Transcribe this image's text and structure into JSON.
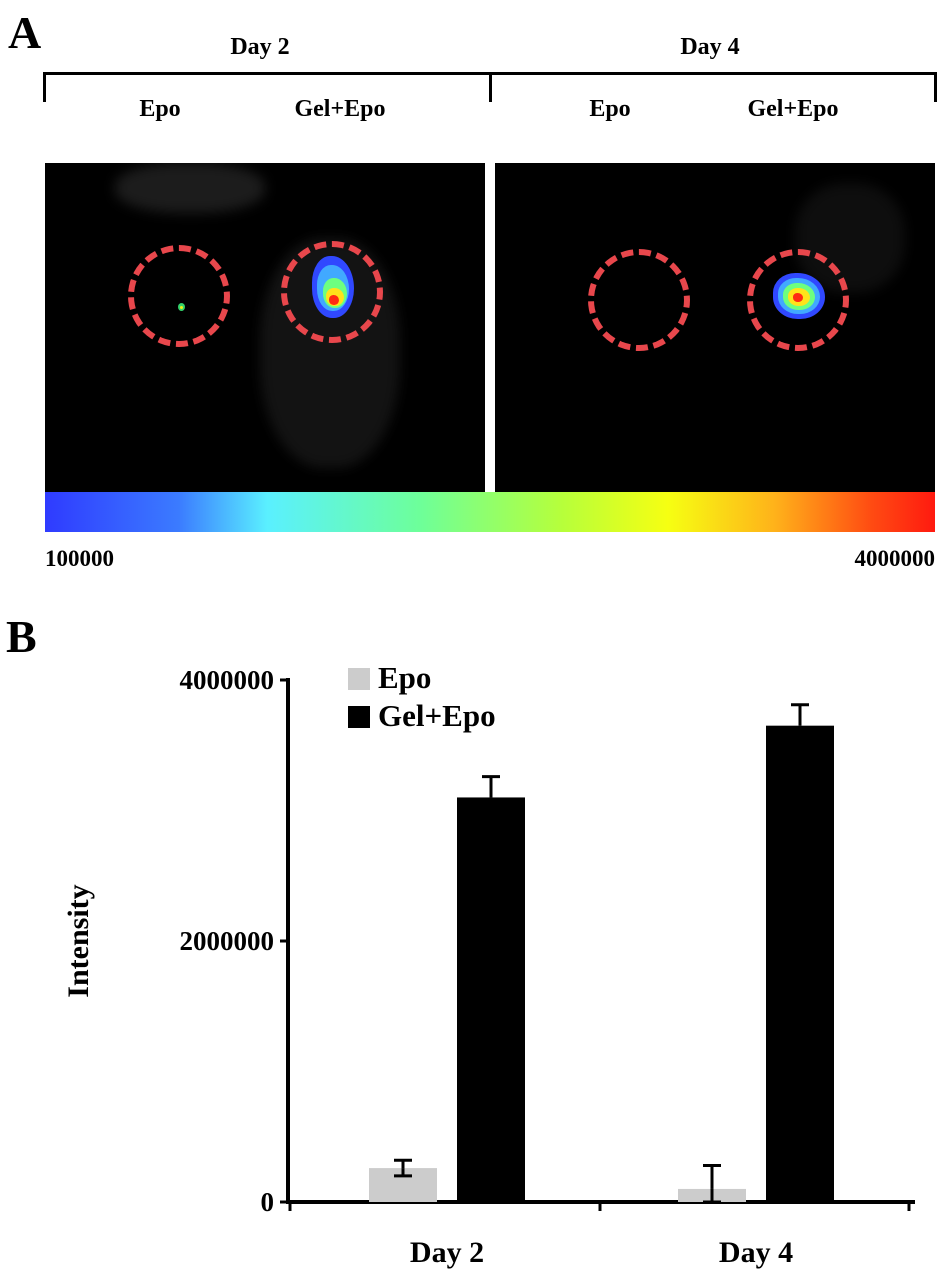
{
  "panel_a": {
    "letter": "A",
    "days": [
      "Day 2",
      "Day 4"
    ],
    "groups": [
      "Epo",
      "Gel+Epo",
      "Epo",
      "Gel+Epo"
    ],
    "colorbar": {
      "min_label": "100000",
      "max_label": "4000000",
      "colors": [
        "#2f3bff",
        "#5af0ff",
        "#b6ff3b",
        "#f6ff12",
        "#ff4a12",
        "#ff1a10"
      ]
    },
    "roi_color": "#e8474c"
  },
  "panel_b": {
    "letter": "B",
    "chart_data": {
      "type": "bar",
      "categories": [
        "Day 2",
        "Day 4"
      ],
      "series": [
        {
          "name": "Epo",
          "color": "#cccccc",
          "values": [
            260000,
            100000
          ],
          "errors": [
            60000,
            180000
          ]
        },
        {
          "name": "Gel+Epo",
          "color": "#000000",
          "values": [
            3100000,
            3650000
          ],
          "errors": [
            160000,
            160000
          ]
        }
      ],
      "ylabel": "Intensity",
      "ylim": [
        0,
        4000000
      ],
      "yticks": [
        0,
        2000000,
        4000000
      ],
      "ytick_labels": [
        "0",
        "2000000",
        "4000000"
      ],
      "legend": "top-left",
      "grid": false
    }
  }
}
